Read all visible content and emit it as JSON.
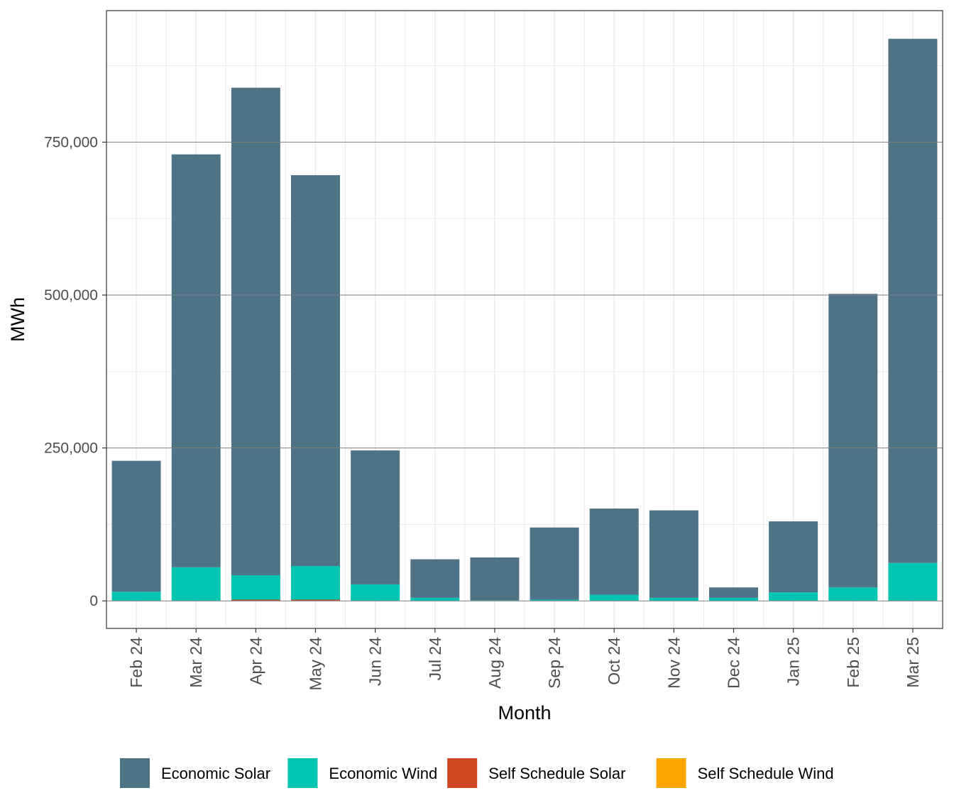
{
  "chart_data": {
    "type": "bar",
    "stacked": true,
    "title": "",
    "xlabel": "Month",
    "ylabel": "MWh",
    "categories": [
      "Feb 24",
      "Mar 24",
      "Apr 24",
      "May 24",
      "Jun 24",
      "Jul 24",
      "Aug 24",
      "Sep 24",
      "Oct 24",
      "Nov 24",
      "Dec 24",
      "Jan 25",
      "Feb 25",
      "Mar 25"
    ],
    "series": [
      {
        "name": "Self Schedule Wind",
        "color": "#FFA500",
        "values": [
          0,
          0,
          0,
          0,
          0,
          0,
          0,
          0,
          0,
          0,
          0,
          0,
          0,
          0
        ]
      },
      {
        "name": "Self Schedule Solar",
        "color": "#D04522",
        "values": [
          0,
          0,
          2000,
          2000,
          0,
          0,
          0,
          0,
          0,
          0,
          0,
          0,
          0,
          0
        ]
      },
      {
        "name": "Economic Wind",
        "color": "#00C5B2",
        "values": [
          15000,
          55000,
          40000,
          55000,
          27000,
          5000,
          1000,
          2000,
          10000,
          5000,
          5000,
          14000,
          22000,
          62000
        ]
      },
      {
        "name": "Economic Solar",
        "color": "#4E7387",
        "values": [
          214000,
          675000,
          797000,
          639000,
          219000,
          63000,
          70000,
          118000,
          141000,
          143000,
          17000,
          116000,
          480000,
          857000
        ]
      }
    ],
    "legend_order": [
      "Economic Solar",
      "Economic Wind",
      "Self Schedule Solar",
      "Self Schedule Wind"
    ],
    "ylim": [
      -45000,
      965000
    ],
    "yticks": [
      0,
      250000,
      500000,
      750000
    ],
    "ytick_labels": [
      "0",
      "250,000",
      "500,000",
      "750,000"
    ],
    "grid": true,
    "legend_position": "bottom"
  }
}
